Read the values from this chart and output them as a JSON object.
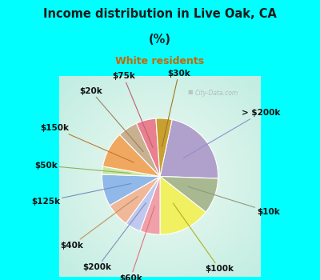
{
  "title_line1": "Income distribution in Live Oak, CA",
  "title_line2": "(%)",
  "subtitle": "White residents",
  "title_color": "#1a1a1a",
  "subtitle_color": "#cc6600",
  "top_bg": "#00ffff",
  "chart_bg_center": "#e8f5ee",
  "chart_bg_edge": "#b0e8d8",
  "pie_slices": [
    {
      "label": "> $200k",
      "value": 20,
      "color": "#b0a0cc"
    },
    {
      "label": "$10k",
      "value": 9,
      "color": "#a8b890"
    },
    {
      "label": "$100k",
      "value": 13,
      "color": "#f0f060"
    },
    {
      "label": "$60k",
      "value": 5,
      "color": "#f0a0a8"
    },
    {
      "label": "$200k",
      "value": 4,
      "color": "#c0c8f0"
    },
    {
      "label": "$40k",
      "value": 6,
      "color": "#f0b898"
    },
    {
      "label": "$125k",
      "value": 8,
      "color": "#90b8e8"
    },
    {
      "label": "$50k",
      "value": 2,
      "color": "#c8e8a0"
    },
    {
      "label": "$150k",
      "value": 9,
      "color": "#f0a860"
    },
    {
      "label": "$20k",
      "value": 5,
      "color": "#c8b090"
    },
    {
      "label": "$75k",
      "value": 5,
      "color": "#e88090"
    },
    {
      "label": "$30k",
      "value": 4,
      "color": "#c8a030"
    }
  ],
  "watermark": "City-Data.com",
  "start_angle": 78,
  "label_fontsize": 7.5,
  "label_color": "#111111"
}
